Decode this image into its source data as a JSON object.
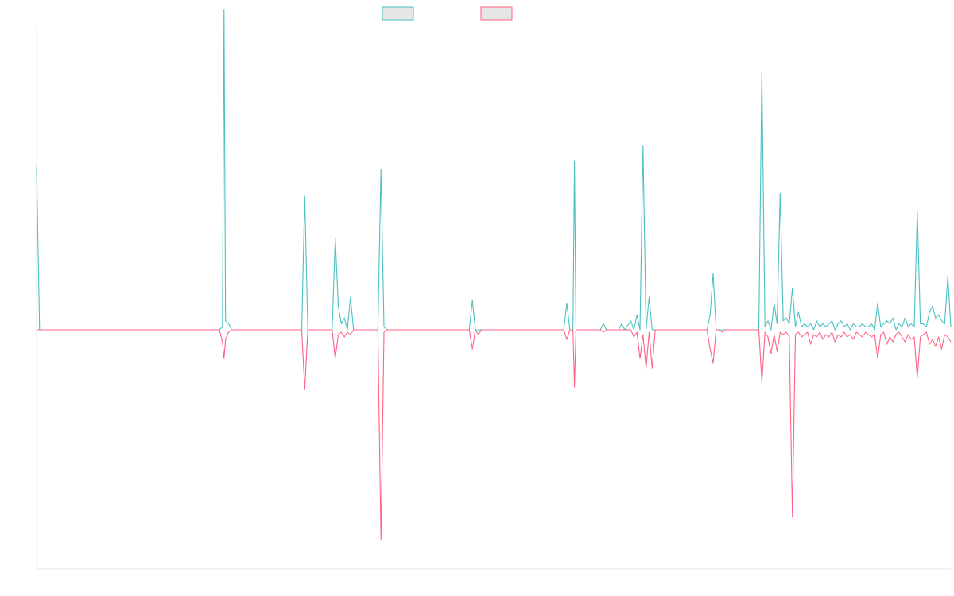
{
  "chart_data": {
    "type": "line",
    "title": "",
    "xlabel": "",
    "ylabel": "",
    "grid": false,
    "legend_position": "top-center",
    "x_range": [
      0,
      300
    ],
    "ylim": [
      -1.0,
      1.0
    ],
    "series": [
      {
        "color": "#4bc0c0",
        "points": [
          [
            0,
            0.55
          ],
          [
            1,
            0
          ],
          [
            60,
            0
          ],
          [
            61,
            0.01
          ],
          [
            61.5,
            1.08
          ],
          [
            62,
            0.03
          ],
          [
            63,
            0.02
          ],
          [
            64,
            0
          ],
          [
            87,
            0
          ],
          [
            88,
            0.45
          ],
          [
            89,
            0
          ],
          [
            97,
            0
          ],
          [
            98,
            0.31
          ],
          [
            99,
            0.08
          ],
          [
            100,
            0.02
          ],
          [
            101,
            0.04
          ],
          [
            102,
            0
          ],
          [
            103,
            0.11
          ],
          [
            104,
            0
          ],
          [
            112,
            0
          ],
          [
            113,
            0.54
          ],
          [
            114,
            0.01
          ],
          [
            115,
            0
          ],
          [
            142,
            0
          ],
          [
            143,
            0.1
          ],
          [
            144,
            0
          ],
          [
            145,
            0
          ],
          [
            173,
            0
          ],
          [
            174,
            0.09
          ],
          [
            175,
            0
          ],
          [
            176,
            0
          ],
          [
            176.5,
            0.57
          ],
          [
            177,
            0
          ],
          [
            185,
            0
          ],
          [
            186,
            0.02
          ],
          [
            187,
            0
          ],
          [
            191,
            0
          ],
          [
            192,
            0.02
          ],
          [
            193,
            0
          ],
          [
            195,
            0.03
          ],
          [
            196,
            0
          ],
          [
            197,
            0.05
          ],
          [
            198,
            0
          ],
          [
            199,
            0.62
          ],
          [
            200,
            0
          ],
          [
            201,
            0.11
          ],
          [
            202,
            0
          ],
          [
            220,
            0
          ],
          [
            221,
            0.05
          ],
          [
            222,
            0.19
          ],
          [
            223,
            0
          ],
          [
            224,
            0
          ],
          [
            226,
            0
          ],
          [
            237,
            0
          ],
          [
            238,
            0.87
          ],
          [
            239,
            0.01
          ],
          [
            240,
            0.03
          ],
          [
            241,
            0
          ],
          [
            242,
            0.09
          ],
          [
            243,
            0.02
          ],
          [
            244,
            0.46
          ],
          [
            245,
            0.03
          ],
          [
            246,
            0.04
          ],
          [
            247,
            0.02
          ],
          [
            248,
            0.14
          ],
          [
            249,
            0.01
          ],
          [
            250,
            0.06
          ],
          [
            251,
            0.01
          ],
          [
            252,
            0.02
          ],
          [
            253,
            0.01
          ],
          [
            254,
            0.02
          ],
          [
            255,
            0
          ],
          [
            256,
            0.03
          ],
          [
            257,
            0.01
          ],
          [
            258,
            0.02
          ],
          [
            259,
            0.01
          ],
          [
            260,
            0.02
          ],
          [
            261,
            0.03
          ],
          [
            262,
            0
          ],
          [
            263,
            0.02
          ],
          [
            264,
            0.03
          ],
          [
            265,
            0.01
          ],
          [
            266,
            0.02
          ],
          [
            267,
            0
          ],
          [
            268,
            0.02
          ],
          [
            269,
            0.01
          ],
          [
            270,
            0.01
          ],
          [
            271,
            0.02
          ],
          [
            272,
            0.01
          ],
          [
            273,
            0.01
          ],
          [
            274,
            0.02
          ],
          [
            275,
            0
          ],
          [
            276,
            0.09
          ],
          [
            277,
            0.01
          ],
          [
            278,
            0.02
          ],
          [
            279,
            0.03
          ],
          [
            280,
            0.02
          ],
          [
            281,
            0.04
          ],
          [
            282,
            0
          ],
          [
            283,
            0.02
          ],
          [
            284,
            0.01
          ],
          [
            285,
            0.04
          ],
          [
            286,
            0.01
          ],
          [
            287,
            0.02
          ],
          [
            288,
            0.01
          ],
          [
            289,
            0.4
          ],
          [
            290,
            0.02
          ],
          [
            291,
            0.02
          ],
          [
            292,
            0.01
          ],
          [
            293,
            0.06
          ],
          [
            294,
            0.08
          ],
          [
            295,
            0.04
          ],
          [
            296,
            0.05
          ],
          [
            297,
            0.03
          ],
          [
            298,
            0.02
          ],
          [
            299,
            0.18
          ],
          [
            300,
            0.01
          ]
        ]
      },
      {
        "color": "#ff6384",
        "points": [
          [
            0,
            0
          ],
          [
            60,
            0
          ],
          [
            61,
            -0.05
          ],
          [
            61.5,
            -0.12
          ],
          [
            62,
            -0.04
          ],
          [
            63,
            -0.01
          ],
          [
            64,
            0
          ],
          [
            87,
            0
          ],
          [
            88,
            -0.25
          ],
          [
            89,
            0
          ],
          [
            97,
            0
          ],
          [
            98,
            -0.12
          ],
          [
            99,
            -0.02
          ],
          [
            100,
            -0.01
          ],
          [
            101,
            -0.03
          ],
          [
            102,
            -0.01
          ],
          [
            103,
            -0.02
          ],
          [
            104,
            0
          ],
          [
            112,
            0
          ],
          [
            113,
            -0.88
          ],
          [
            114,
            -0.01
          ],
          [
            115,
            0
          ],
          [
            142,
            0
          ],
          [
            143,
            -0.08
          ],
          [
            144,
            0
          ],
          [
            145,
            -0.02
          ],
          [
            146,
            0
          ],
          [
            173,
            0
          ],
          [
            174,
            -0.04
          ],
          [
            175,
            0
          ],
          [
            176,
            0
          ],
          [
            176.5,
            -0.24
          ],
          [
            177,
            0
          ],
          [
            185,
            0
          ],
          [
            186,
            -0.01
          ],
          [
            187,
            0
          ],
          [
            195,
            0
          ],
          [
            196,
            -0.03
          ],
          [
            197,
            -0.01
          ],
          [
            198,
            -0.12
          ],
          [
            199,
            -0.02
          ],
          [
            200,
            -0.16
          ],
          [
            201,
            -0.01
          ],
          [
            202,
            -0.16
          ],
          [
            203,
            0
          ],
          [
            220,
            0
          ],
          [
            221,
            -0.08
          ],
          [
            222,
            -0.14
          ],
          [
            223,
            0
          ],
          [
            224,
            0
          ],
          [
            225,
            -0.01
          ],
          [
            226,
            0
          ],
          [
            237,
            0
          ],
          [
            238,
            -0.22
          ],
          [
            239,
            -0.01
          ],
          [
            240,
            -0.03
          ],
          [
            241,
            -0.1
          ],
          [
            242,
            -0.02
          ],
          [
            243,
            -0.09
          ],
          [
            244,
            -0.01
          ],
          [
            245,
            -0.02
          ],
          [
            246,
            -0.01
          ],
          [
            247,
            -0.03
          ],
          [
            248,
            -0.78
          ],
          [
            249,
            -0.02
          ],
          [
            250,
            -0.01
          ],
          [
            251,
            -0.03
          ],
          [
            252,
            -0.02
          ],
          [
            253,
            -0.01
          ],
          [
            254,
            -0.06
          ],
          [
            255,
            -0.02
          ],
          [
            256,
            -0.03
          ],
          [
            257,
            -0.01
          ],
          [
            258,
            -0.04
          ],
          [
            259,
            -0.02
          ],
          [
            260,
            -0.03
          ],
          [
            261,
            -0.01
          ],
          [
            262,
            -0.05
          ],
          [
            263,
            -0.02
          ],
          [
            264,
            -0.03
          ],
          [
            265,
            -0.01
          ],
          [
            266,
            -0.03
          ],
          [
            267,
            -0.02
          ],
          [
            268,
            -0.04
          ],
          [
            269,
            -0.01
          ],
          [
            270,
            -0.02
          ],
          [
            271,
            -0.03
          ],
          [
            272,
            -0.01
          ],
          [
            273,
            -0.02
          ],
          [
            274,
            -0.03
          ],
          [
            275,
            -0.02
          ],
          [
            276,
            -0.12
          ],
          [
            277,
            -0.02
          ],
          [
            278,
            -0.01
          ],
          [
            279,
            -0.06
          ],
          [
            280,
            -0.03
          ],
          [
            281,
            -0.05
          ],
          [
            282,
            -0.02
          ],
          [
            283,
            -0.01
          ],
          [
            284,
            -0.03
          ],
          [
            285,
            -0.05
          ],
          [
            286,
            -0.02
          ],
          [
            287,
            -0.04
          ],
          [
            288,
            -0.03
          ],
          [
            289,
            -0.2
          ],
          [
            290,
            -0.03
          ],
          [
            291,
            -0.02
          ],
          [
            292,
            -0.01
          ],
          [
            293,
            -0.06
          ],
          [
            294,
            -0.04
          ],
          [
            295,
            -0.07
          ],
          [
            296,
            -0.03
          ],
          [
            297,
            -0.08
          ],
          [
            298,
            -0.02
          ],
          [
            299,
            -0.03
          ],
          [
            300,
            -0.05
          ]
        ]
      }
    ]
  }
}
